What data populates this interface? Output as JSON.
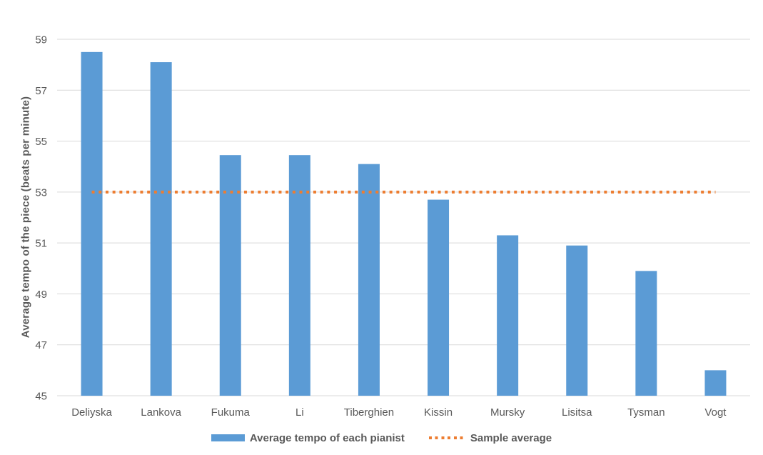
{
  "chart_data": {
    "type": "bar",
    "title": "",
    "categories": [
      "Deliyska",
      "Lankova",
      "Fukuma",
      "Li",
      "Tiberghien",
      "Kissin",
      "Mursky",
      "Lisitsa",
      "Tysman",
      "Vogt"
    ],
    "series": [
      {
        "name": "Average tempo of each pianist",
        "type": "bar",
        "color": "#5B9BD5",
        "values": [
          58.5,
          58.1,
          54.45,
          54.45,
          54.1,
          52.7,
          51.3,
          50.9,
          49.9,
          46.0
        ]
      },
      {
        "name": "Sample average",
        "type": "dotted-line",
        "color": "#ED7D31",
        "value": 53.0
      }
    ],
    "xlabel": "",
    "ylabel": "Average tempo of the piece (beats per minute)",
    "ylim": [
      45,
      59
    ],
    "yticks": [
      45,
      47,
      49,
      51,
      53,
      55,
      57,
      59
    ],
    "grid": true,
    "legend_position": "bottom",
    "colors": {
      "gridline": "#D9D9D9",
      "axis_line": "#D9D9D9",
      "text": "#595959",
      "background": "#FFFFFF"
    }
  }
}
